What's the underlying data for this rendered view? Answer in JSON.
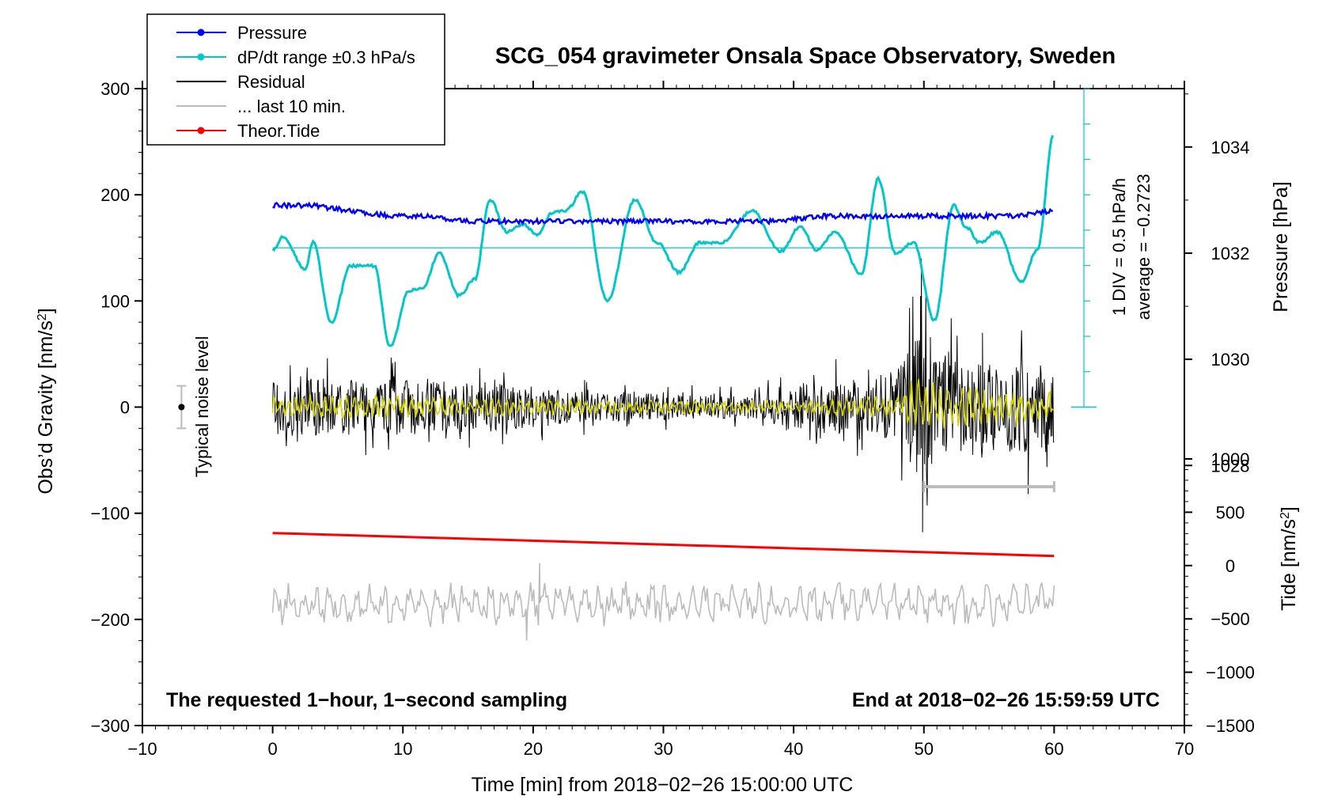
{
  "chart_data": {
    "type": "line",
    "title": "SCG_054 gravimeter Onsala Space Observatory, Sweden",
    "xlabel": "Time [min] from 2018−02−26 15:00:00 UTC",
    "ylabel_left": "Obs’d Gravity [nm/s",
    "ylabel_left_sup": "2",
    "ylabel_left_close": "]",
    "ylabel_right_pressure": "Pressure [hPa]",
    "ylabel_right_tide": "Tide [nm/s",
    "ylabel_right_tide_sup": "2",
    "ylabel_right_tide_close": "]",
    "xlim": [
      -10,
      70
    ],
    "ylim": [
      -300,
      300
    ],
    "x_ticks": [
      -10,
      0,
      10,
      20,
      30,
      40,
      50,
      60,
      70
    ],
    "x_tick_labels": [
      "−10",
      "0",
      "10",
      "20",
      "30",
      "40",
      "50",
      "60",
      "70"
    ],
    "y_ticks": [
      -300,
      -200,
      -100,
      0,
      100,
      200,
      300
    ],
    "y_tick_labels": [
      "−300",
      "−200",
      "−100",
      "0",
      "100",
      "200",
      "300"
    ],
    "pressure_axis": {
      "ticks": [
        1028,
        1030,
        1032,
        1034
      ],
      "tick_labels": [
        "1028",
        "1030",
        "1032",
        "1034"
      ],
      "range_hpa": [
        1023.1,
        1035.1
      ]
    },
    "tide_axis": {
      "ticks": [
        -1500,
        -1000,
        -500,
        0,
        500,
        1000
      ],
      "tick_labels": [
        "−1500",
        "−1000",
        "−500",
        "0",
        "500",
        "1000"
      ],
      "range": [
        -1500,
        1000
      ]
    },
    "dpdt_scale": {
      "div_label": "1 DIV = 0.5 hPa/h",
      "average_label": "average = −0.2723",
      "baseline_gravity": 150,
      "zero_gravity": 0,
      "divisions": 10
    },
    "legend": [
      {
        "label": "Pressure",
        "color": "#0000ff",
        "marker": true
      },
      {
        "label": "dP/dt range ±0.3 hPa/s",
        "color": "#00c8c8",
        "marker": true
      },
      {
        "label": "Residual",
        "color": "#000000",
        "marker": false
      },
      {
        "label": "... last 10 min.",
        "color": "#bbbbbb",
        "marker": false
      },
      {
        "label": "Theor.Tide",
        "color": "#ff0000",
        "marker": true
      }
    ],
    "noise_label": "Typical noise level",
    "noise_level": {
      "x": -7,
      "y": 0,
      "err": 20
    },
    "bottom_left_note": "The requested 1−hour, 1−second sampling",
    "bottom_right_note": "End at 2018−02−26 15:59:59 UTC",
    "last10_bracket": {
      "x_start": 50,
      "x_end": 60,
      "y": -75
    },
    "series": [
      {
        "name": "Pressure",
        "color": "#0000ff",
        "unit": "hPa",
        "x": [
          0,
          3,
          6,
          9,
          12,
          15,
          18,
          21,
          24,
          27,
          30,
          33,
          36,
          39,
          42,
          45,
          48,
          51,
          54,
          57,
          60
        ],
        "values": [
          1032.9,
          1032.9,
          1032.8,
          1032.7,
          1032.7,
          1032.6,
          1032.6,
          1032.6,
          1032.6,
          1032.6,
          1032.6,
          1032.6,
          1032.6,
          1032.6,
          1032.7,
          1032.7,
          1032.7,
          1032.7,
          1032.7,
          1032.7,
          1032.8
        ]
      },
      {
        "name": "dP/dt",
        "color": "#00c8c8",
        "unit": "gravity-scaled",
        "x": [
          0,
          0.8,
          2.5,
          3.1,
          4.5,
          6.0,
          7.8,
          9.0,
          10.5,
          11.5,
          12.8,
          14.3,
          15.5,
          16.7,
          18.0,
          19.2,
          20.3,
          21.5,
          22.5,
          23.8,
          25.7,
          27.8,
          29.5,
          31.2,
          32.8,
          34.5,
          36.8,
          39.0,
          40.5,
          41.8,
          43.2,
          45.2,
          46.5,
          47.8,
          49.2,
          50.8,
          52.3,
          53.2,
          54.3,
          55.6,
          57.5,
          58.7,
          60.0
        ],
        "values": [
          148,
          160,
          130,
          155,
          80,
          133,
          133,
          57,
          110,
          112,
          145,
          105,
          120,
          195,
          165,
          172,
          163,
          183,
          185,
          203,
          100,
          195,
          155,
          127,
          155,
          155,
          185,
          147,
          170,
          148,
          165,
          125,
          215,
          145,
          155,
          82,
          190,
          170,
          155,
          165,
          118,
          148,
          258
        ]
      },
      {
        "name": "Residual",
        "color": "#000000",
        "unit": "nm/s2",
        "noise_profile": {
          "x": [
            0,
            5,
            15,
            25,
            33,
            37,
            39,
            45,
            48,
            49.5,
            52,
            55,
            58,
            60
          ],
          "amplitude": [
            30,
            30,
            28,
            15,
            13,
            12,
            25,
            30,
            40,
            80,
            55,
            45,
            50,
            40
          ]
        },
        "spikes": [
          {
            "x": 49.8,
            "y": 140
          },
          {
            "x": 49.9,
            "y": -118
          },
          {
            "x": 58,
            "y": -82
          },
          {
            "x": 54.5,
            "y": 70
          }
        ]
      },
      {
        "name": "Residual (filtered)",
        "color": "#d4d400",
        "unit": "nm/s2",
        "noise_profile": {
          "x": [
            0,
            20,
            40,
            48,
            49.5,
            52,
            60
          ],
          "amplitude": [
            12,
            8,
            6,
            10,
            30,
            18,
            14
          ]
        }
      },
      {
        "name": "Theor.Tide",
        "color": "#ff0000",
        "unit": "nm/s2",
        "x": [
          0,
          60
        ],
        "values": [
          305,
          90
        ]
      },
      {
        "name": "... last 10 min.",
        "color": "#bbbbbb",
        "unit": "nm/s2",
        "baseline": -185,
        "amplitude": 18,
        "spikes": [
          {
            "x": 20.5,
            "y": -147
          },
          {
            "x": 19.5,
            "y": -220
          }
        ]
      }
    ]
  }
}
